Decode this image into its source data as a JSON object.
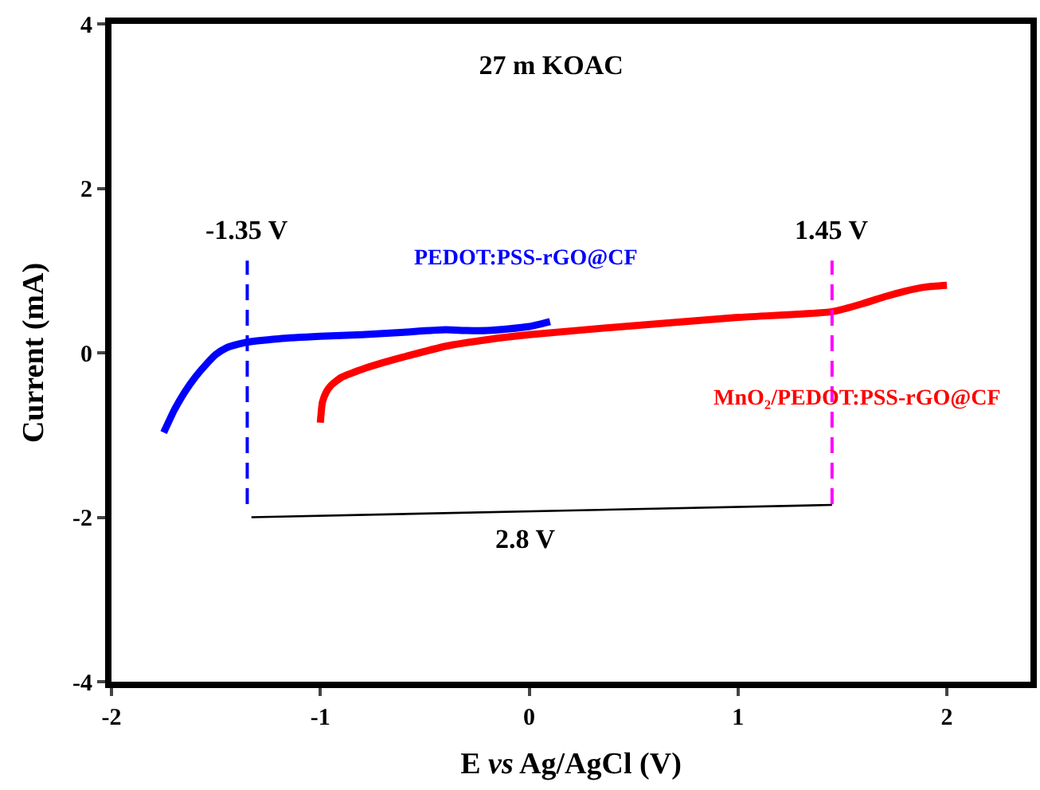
{
  "chart_data": {
    "type": "line",
    "title": "27 m KOAC",
    "xlabel": "E vs Ag/AgCl (V)",
    "ylabel": "Current (mA)",
    "xlim": [
      -2,
      2.4
    ],
    "xticks": [
      -2,
      -1,
      0,
      1,
      2
    ],
    "ylim": [
      -4,
      4
    ],
    "yticks": [
      -4,
      -2,
      0,
      2,
      4
    ],
    "legend": false,
    "marker": "none",
    "series": [
      {
        "name": "PEDOT:PSS-rGO@CF",
        "color": "#0000ff",
        "x": [
          -1.75,
          -1.7,
          -1.65,
          -1.6,
          -1.55,
          -1.5,
          -1.45,
          -1.4,
          -1.35,
          -1.2,
          -1.0,
          -0.8,
          -0.6,
          -0.4,
          -0.3,
          -0.2,
          -0.1,
          0,
          0.1
        ],
        "values": [
          -0.97,
          -0.7,
          -0.48,
          -0.3,
          -0.15,
          -0.02,
          0.06,
          0.1,
          0.13,
          0.17,
          0.2,
          0.22,
          0.25,
          0.28,
          0.27,
          0.27,
          0.29,
          0.32,
          0.38
        ]
      },
      {
        "name": "MnO₂/PEDOT:PSS-rGO@CF",
        "color": "#ff0000",
        "x": [
          -1.0,
          -0.99,
          -0.97,
          -0.95,
          -0.9,
          -0.8,
          -0.7,
          -0.6,
          -0.4,
          -0.2,
          0,
          0.5,
          1.0,
          1.45,
          1.6,
          1.7,
          1.8,
          1.9,
          2.0
        ],
        "values": [
          -0.85,
          -0.6,
          -0.47,
          -0.4,
          -0.3,
          -0.2,
          -0.12,
          -0.05,
          0.08,
          0.16,
          0.22,
          0.33,
          0.43,
          0.5,
          0.6,
          0.68,
          0.75,
          0.8,
          0.82
        ]
      },
      {
        "color": "#000000",
        "x": [
          -1.33,
          1.45
        ],
        "values": [
          -2.0,
          -1.85
        ]
      }
    ],
    "ref_lines": [
      {
        "axis": "x",
        "value": -1.35,
        "label": "-1.35 V",
        "color": "#0000ff",
        "line_style": "dashed"
      },
      {
        "axis": "x",
        "value": 1.45,
        "label": "1.45 V",
        "color": "#ff00ff",
        "line_style": "dashed"
      }
    ],
    "annotations": [
      "2.8 V"
    ]
  }
}
